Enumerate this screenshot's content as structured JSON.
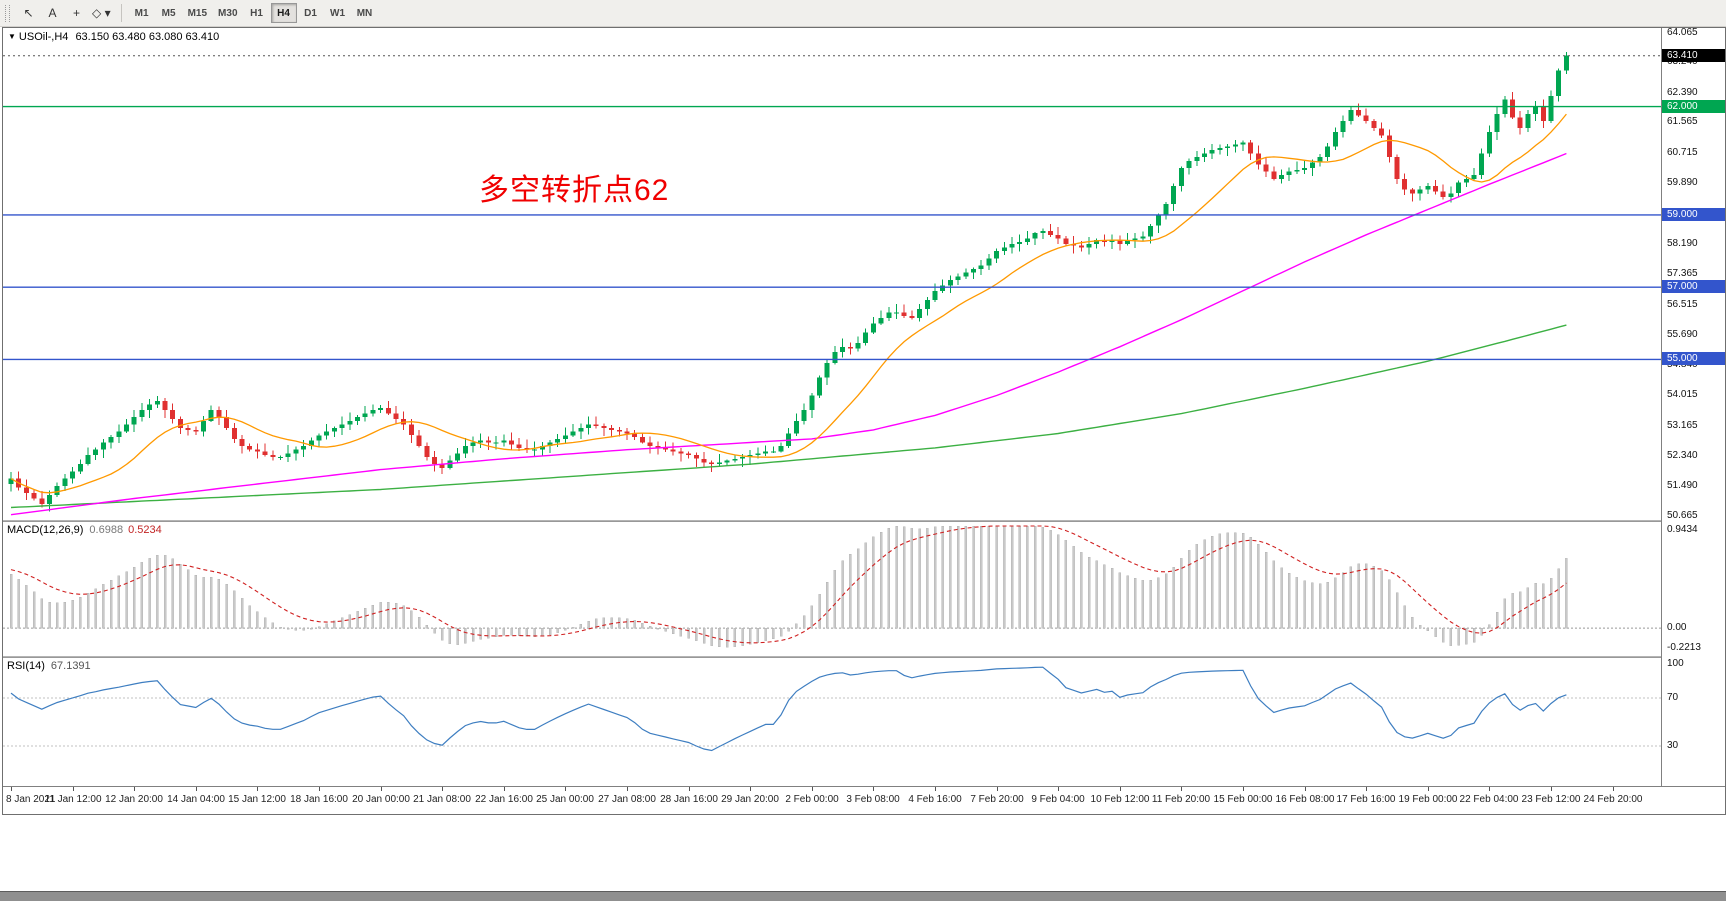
{
  "toolbar": {
    "tools": [
      {
        "name": "cursor",
        "glyph": "↖"
      },
      {
        "name": "text",
        "glyph": "A"
      },
      {
        "name": "crosshair",
        "glyph": "+"
      },
      {
        "name": "shapes-dropdown",
        "glyph": "◇",
        "caret": "▾"
      }
    ],
    "timeframes": [
      "M1",
      "M5",
      "M15",
      "M30",
      "H1",
      "H4",
      "D1",
      "W1",
      "MN"
    ],
    "active_timeframe": "H4"
  },
  "chart": {
    "expander_glyph": "▼",
    "title_symbol": "USOil-,H4",
    "title_ohlc": "63.150 63.480 63.080 63.410",
    "annotation": {
      "text": "多空转折点62",
      "color": "#F00000"
    }
  },
  "indicators": {
    "macd": {
      "label": "MACD(12,26,9)",
      "value_main": "0.6988",
      "value_signal": "0.5234",
      "axis_labels": [
        "0.9434",
        "0.00",
        "-0.2213"
      ]
    },
    "rsi": {
      "label": "RSI(14)",
      "value": "67.1391",
      "axis_labels": [
        "100",
        "70",
        "30"
      ]
    }
  },
  "price_axis": {
    "labels": [
      "64.065",
      "63.240",
      "62.390",
      "61.565",
      "60.715",
      "59.890",
      "58.190",
      "57.365",
      "56.515",
      "55.690",
      "54.840",
      "54.015",
      "53.165",
      "52.340",
      "51.490",
      "50.665"
    ],
    "badges": [
      {
        "value": "63.410",
        "color": "#000000",
        "name": "current"
      },
      {
        "value": "62.000",
        "color": "#00A651",
        "name": "level-62"
      },
      {
        "value": "59.000",
        "color": "#3355CC",
        "name": "level-59"
      },
      {
        "value": "57.000",
        "color": "#3355CC",
        "name": "level-57"
      },
      {
        "value": "55.000",
        "color": "#3355CC",
        "name": "level-55"
      }
    ]
  },
  "chart_data": {
    "type": "candlestick",
    "symbol": "USOil",
    "timeframe": "H4",
    "title": "USOil-,H4 63.150 63.480 63.080 63.410",
    "y_min": 50.665,
    "y_max": 64.065,
    "current_price": 63.41,
    "hlines": [
      {
        "price": 62.0,
        "color": "#00A651"
      },
      {
        "price": 59.0,
        "color": "#3355CC"
      },
      {
        "price": 57.0,
        "color": "#3355CC"
      },
      {
        "price": 55.0,
        "color": "#3355CC"
      }
    ],
    "closes": [
      51.7,
      51.45,
      51.3,
      51.15,
      51.0,
      51.25,
      51.5,
      51.7,
      51.9,
      52.1,
      52.35,
      52.5,
      52.7,
      52.85,
      53.0,
      53.2,
      53.4,
      53.6,
      53.75,
      53.85,
      53.6,
      53.35,
      53.1,
      53.05,
      53.0,
      53.3,
      53.6,
      53.4,
      53.1,
      52.8,
      52.6,
      52.5,
      52.45,
      52.35,
      52.3,
      52.3,
      52.4,
      52.5,
      52.6,
      52.75,
      52.9,
      53.0,
      53.1,
      53.2,
      53.3,
      53.4,
      53.5,
      53.6,
      53.65,
      53.5,
      53.35,
      53.2,
      52.9,
      52.6,
      52.3,
      52.1,
      52.0,
      52.2,
      52.4,
      52.6,
      52.7,
      52.75,
      52.7,
      52.7,
      52.75,
      52.65,
      52.55,
      52.5,
      52.5,
      52.6,
      52.7,
      52.8,
      52.9,
      53.0,
      53.1,
      53.2,
      53.15,
      53.1,
      53.05,
      53.0,
      52.95,
      52.85,
      52.7,
      52.6,
      52.55,
      52.5,
      52.45,
      52.4,
      52.35,
      52.25,
      52.15,
      52.1,
      52.15,
      52.2,
      52.25,
      52.3,
      52.35,
      52.4,
      52.45,
      52.45,
      52.6,
      52.95,
      53.3,
      53.6,
      54.0,
      54.5,
      54.9,
      55.2,
      55.35,
      55.3,
      55.45,
      55.75,
      56.0,
      56.15,
      56.3,
      56.3,
      56.2,
      56.15,
      56.4,
      56.65,
      56.9,
      57.05,
      57.2,
      57.3,
      57.4,
      57.5,
      57.6,
      57.8,
      58.0,
      58.1,
      58.2,
      58.25,
      58.35,
      58.5,
      58.55,
      58.45,
      58.35,
      58.2,
      58.15,
      58.1,
      58.2,
      58.3,
      58.25,
      58.3,
      58.2,
      58.3,
      58.35,
      58.4,
      58.7,
      59.0,
      59.3,
      59.8,
      60.3,
      60.5,
      60.6,
      60.7,
      60.8,
      60.85,
      60.9,
      60.95,
      61.0,
      60.7,
      60.4,
      60.2,
      60.0,
      60.1,
      60.2,
      60.25,
      60.3,
      60.45,
      60.6,
      60.9,
      61.3,
      61.6,
      61.9,
      61.75,
      61.6,
      61.4,
      61.2,
      60.6,
      60.0,
      59.7,
      59.6,
      59.7,
      59.8,
      59.65,
      59.5,
      59.6,
      59.9,
      60.0,
      60.1,
      60.7,
      61.3,
      61.8,
      62.2,
      61.7,
      61.4,
      61.8,
      62.0,
      61.6,
      62.3,
      63.0,
      63.41
    ],
    "time_labels": [
      "8 Jan 2021",
      "11 Jan 12:00",
      "12 Jan 20:00",
      "14 Jan 04:00",
      "15 Jan 12:00",
      "18 Jan 16:00",
      "20 Jan 00:00",
      "21 Jan 08:00",
      "22 Jan 16:00",
      "25 Jan 00:00",
      "27 Jan 08:00",
      "28 Jan 16:00",
      "29 Jan 20:00",
      "2 Feb 00:00",
      "3 Feb 08:00",
      "4 Feb 16:00",
      "7 Feb 20:00",
      "9 Feb 04:00",
      "10 Feb 12:00",
      "11 Feb 20:00",
      "15 Feb 00:00",
      "16 Feb 08:00",
      "17 Feb 16:00",
      "19 Feb 00:00",
      "22 Feb 04:00",
      "23 Feb 12:00",
      "24 Feb 20:00"
    ],
    "bars_per_label": 8,
    "ma_fast_period": 13,
    "ma_mid_anchors": [
      [
        0,
        50.7
      ],
      [
        16,
        51.15
      ],
      [
        32,
        51.55
      ],
      [
        48,
        51.95
      ],
      [
        64,
        52.25
      ],
      [
        80,
        52.5
      ],
      [
        96,
        52.7
      ],
      [
        104,
        52.8
      ],
      [
        112,
        53.05
      ],
      [
        120,
        53.45
      ],
      [
        128,
        54.0
      ],
      [
        136,
        54.65
      ],
      [
        144,
        55.35
      ],
      [
        152,
        56.1
      ],
      [
        160,
        56.9
      ],
      [
        168,
        57.7
      ],
      [
        176,
        58.45
      ],
      [
        184,
        59.15
      ],
      [
        192,
        59.85
      ],
      [
        202,
        60.7
      ]
    ],
    "ma_slow_anchors": [
      [
        0,
        50.9
      ],
      [
        24,
        51.15
      ],
      [
        48,
        51.4
      ],
      [
        72,
        51.75
      ],
      [
        96,
        52.1
      ],
      [
        120,
        52.55
      ],
      [
        136,
        52.95
      ],
      [
        152,
        53.5
      ],
      [
        168,
        54.2
      ],
      [
        184,
        54.95
      ],
      [
        194,
        55.5
      ],
      [
        202,
        55.95
      ]
    ],
    "macd_range": [
      -0.2213,
      0.9434
    ],
    "rsi_levels": [
      70,
      30
    ],
    "colors": {
      "up": "#00A651",
      "down": "#E03030",
      "ma_fast": "#FF9900",
      "ma_mid": "#FF00FF",
      "ma_slow": "#3CB043",
      "macd_hist": "#C9C9C9",
      "macd_signal": "#D02020",
      "rsi": "#3E7EC1",
      "level_dots": "#C0C0C0"
    }
  }
}
